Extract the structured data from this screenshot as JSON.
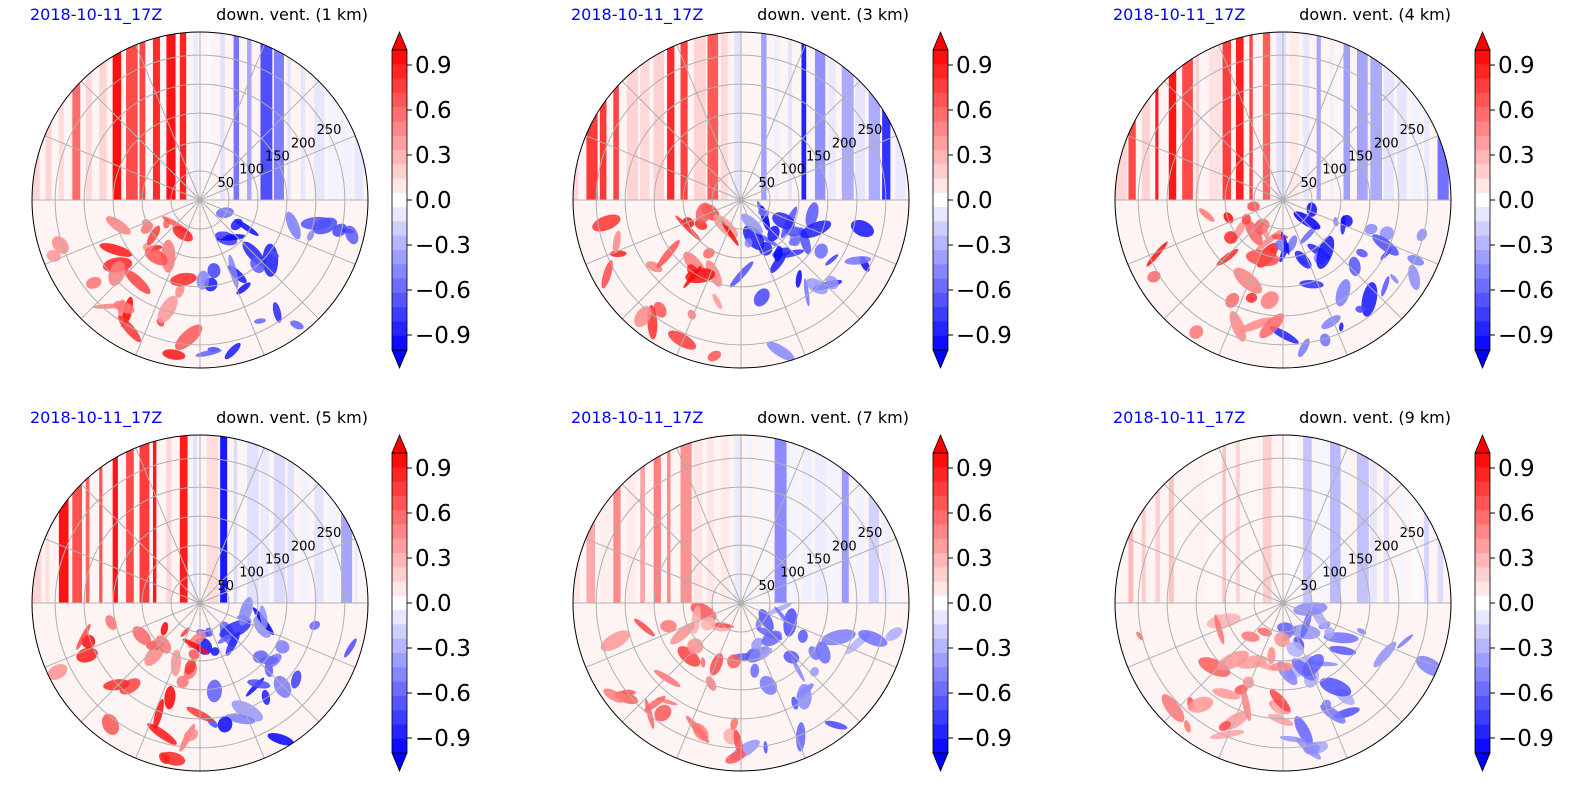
{
  "chart_data": [
    {
      "type": "heatmap",
      "subtype": "polar",
      "date_label": "2018-10-11_17Z",
      "title": "down. vent. (1 km)",
      "radial_tick_labels": [
        "50",
        "100",
        "150",
        "200",
        "250"
      ],
      "rlim": [
        0,
        290
      ],
      "grid": true,
      "colormap": "bwr",
      "colorbar": {
        "vmin": -1.0,
        "vmax": 1.0,
        "levels": 21,
        "extend": "both",
        "tick_labels": [
          "0.9",
          "0.6",
          "0.3",
          "0.0",
          "−0.3",
          "−0.6",
          "−0.9"
        ]
      }
    },
    {
      "type": "heatmap",
      "subtype": "polar",
      "date_label": "2018-10-11_17Z",
      "title": "down. vent. (3 km)",
      "radial_tick_labels": [
        "50",
        "100",
        "150",
        "200",
        "250"
      ],
      "rlim": [
        0,
        290
      ],
      "grid": true,
      "colormap": "bwr",
      "colorbar": {
        "vmin": -1.0,
        "vmax": 1.0,
        "levels": 21,
        "extend": "both",
        "tick_labels": [
          "0.9",
          "0.6",
          "0.3",
          "0.0",
          "−0.3",
          "−0.6",
          "−0.9"
        ]
      }
    },
    {
      "type": "heatmap",
      "subtype": "polar",
      "date_label": "2018-10-11_17Z",
      "title": "down. vent. (4 km)",
      "radial_tick_labels": [
        "50",
        "100",
        "150",
        "200",
        "250"
      ],
      "rlim": [
        0,
        290
      ],
      "grid": true,
      "colormap": "bwr",
      "colorbar": {
        "vmin": -1.0,
        "vmax": 1.0,
        "levels": 21,
        "extend": "both",
        "tick_labels": [
          "0.9",
          "0.6",
          "0.3",
          "0.0",
          "−0.3",
          "−0.6",
          "−0.9"
        ]
      }
    },
    {
      "type": "heatmap",
      "subtype": "polar",
      "date_label": "2018-10-11_17Z",
      "title": "down. vent. (5 km)",
      "radial_tick_labels": [
        "50",
        "100",
        "150",
        "200",
        "250"
      ],
      "rlim": [
        0,
        290
      ],
      "grid": true,
      "colormap": "bwr",
      "colorbar": {
        "vmin": -1.0,
        "vmax": 1.0,
        "levels": 21,
        "extend": "both",
        "tick_labels": [
          "0.9",
          "0.6",
          "0.3",
          "0.0",
          "−0.3",
          "−0.6",
          "−0.9"
        ]
      }
    },
    {
      "type": "heatmap",
      "subtype": "polar",
      "date_label": "2018-10-11_17Z",
      "title": "down. vent. (7 km)",
      "radial_tick_labels": [
        "50",
        "100",
        "150",
        "200",
        "250"
      ],
      "rlim": [
        0,
        290
      ],
      "grid": true,
      "colormap": "bwr",
      "colorbar": {
        "vmin": -1.0,
        "vmax": 1.0,
        "levels": 21,
        "extend": "both",
        "tick_labels": [
          "0.9",
          "0.6",
          "0.3",
          "0.0",
          "−0.3",
          "−0.6",
          "−0.9"
        ]
      }
    },
    {
      "type": "heatmap",
      "subtype": "polar",
      "date_label": "2018-10-11_17Z",
      "title": "down. vent. (9 km)",
      "radial_tick_labels": [
        "50",
        "100",
        "150",
        "200",
        "250"
      ],
      "rlim": [
        0,
        290
      ],
      "grid": true,
      "colormap": "bwr",
      "colorbar": {
        "vmin": -1.0,
        "vmax": 1.0,
        "levels": 21,
        "extend": "both",
        "tick_labels": [
          "0.9",
          "0.6",
          "0.3",
          "0.0",
          "−0.3",
          "−0.6",
          "−0.9"
        ]
      }
    }
  ]
}
